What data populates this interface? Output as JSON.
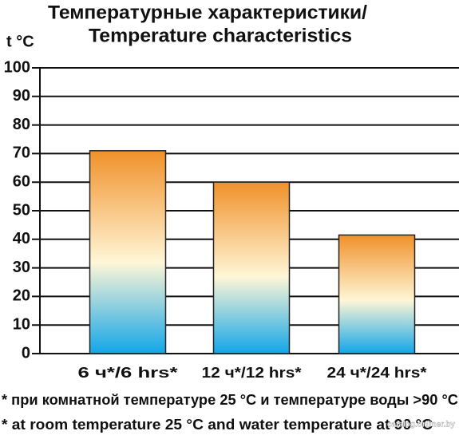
{
  "chart_data": {
    "type": "bar",
    "title": [
      "Температурные характеристики/",
      "Temperature characteristics"
    ],
    "ylabel": "t °C",
    "categories": [
      "6 ч*/6 hrs*",
      "12 ч*/12 hrs*",
      "24 ч*/24 hrs*"
    ],
    "values": [
      71,
      60,
      41.5
    ],
    "colors": [
      "#f0912a",
      "#fff6d6",
      "#12a6e8"
    ],
    "ylim": [
      0,
      100
    ],
    "yticks": [
      0,
      10,
      20,
      30,
      40,
      50,
      60,
      70,
      80,
      90,
      100
    ],
    "grid": true,
    "footnotes": [
      "* при комнатной температуре 25 °C и температуре воды >90 °C",
      "* at room temperature 25 °C and water temperature at 90 °C"
    ],
    "watermark": "catalog.onliner.by"
  }
}
